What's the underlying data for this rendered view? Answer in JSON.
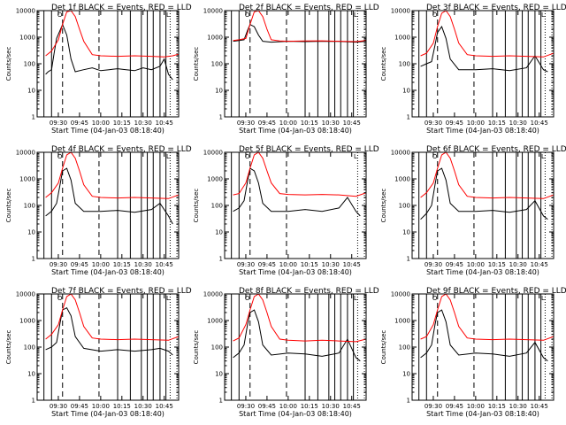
{
  "ylabel": "Counts/sec",
  "xlabel": "Start Time (04-Jan-03 08:18:40)",
  "y_ticks": [
    "1",
    "10",
    "100",
    "1000",
    "10000"
  ],
  "x_ticks": [
    "09:30",
    "09:45",
    "10:00",
    "10:15",
    "10:30",
    "10:45"
  ],
  "legend_marks": {
    "left": "O",
    "right": "L"
  },
  "colors": {
    "events": "#000000",
    "lld": "#ff0000",
    "axes": "#000000"
  },
  "chart_data": [
    {
      "type": "line",
      "title": "Det 1f BLACK = Events, RED = LLD",
      "xlim": [
        9.25,
        10.92
      ],
      "ylim": [
        1,
        10000
      ],
      "yscale": "log",
      "series": [
        {
          "name": "Events",
          "color": "#000000",
          "x": [
            9.35,
            9.38,
            9.42,
            9.45,
            9.48,
            9.52,
            9.55,
            9.6,
            9.65,
            9.7,
            9.8,
            9.9,
            10.0,
            10.1,
            10.2,
            10.3,
            10.4,
            10.5,
            10.6,
            10.7,
            10.75,
            10.8,
            10.85
          ],
          "y": [
            40,
            50,
            60,
            250,
            900,
            1800,
            3000,
            1200,
            150,
            50,
            60,
            70,
            55,
            60,
            65,
            60,
            55,
            70,
            60,
            80,
            150,
            40,
            25
          ]
        },
        {
          "name": "LLD",
          "color": "#ff0000",
          "x": [
            9.35,
            9.42,
            9.5,
            9.55,
            9.6,
            9.65,
            9.7,
            9.75,
            9.8,
            9.9,
            10.0,
            10.2,
            10.4,
            10.6,
            10.75,
            10.85,
            10.92
          ],
          "y": [
            200,
            300,
            800,
            3000,
            9000,
            10000,
            6000,
            2000,
            700,
            220,
            200,
            190,
            200,
            190,
            180,
            200,
            230
          ]
        }
      ],
      "markers": {
        "dashed": [
          9.55,
          9.98
        ],
        "solid": [
          9.33,
          9.42,
          10.2,
          10.35,
          10.48,
          10.55,
          10.62,
          10.7,
          10.77
        ],
        "dotted": [
          10.82,
          10.9
        ]
      }
    },
    {
      "type": "line",
      "title": "Det 2f BLACK = Events, RED = LLD",
      "xlim": [
        9.25,
        10.92
      ],
      "ylim": [
        1,
        10000
      ],
      "yscale": "log",
      "series": [
        {
          "name": "Events",
          "color": "#000000",
          "x": [
            9.35,
            9.42,
            9.48,
            9.52,
            9.55,
            9.6,
            9.65,
            9.7,
            9.8,
            10.0,
            10.2,
            10.4,
            10.6,
            10.8,
            10.92
          ],
          "y": [
            700,
            750,
            800,
            1800,
            3000,
            2500,
            1200,
            700,
            650,
            700,
            680,
            700,
            690,
            650,
            700
          ]
        },
        {
          "name": "LLD",
          "color": "#ff0000",
          "x": [
            9.35,
            9.42,
            9.5,
            9.55,
            9.6,
            9.65,
            9.7,
            9.75,
            9.8,
            9.9,
            10.0,
            10.2,
            10.4,
            10.6,
            10.8,
            10.92
          ],
          "y": [
            750,
            800,
            900,
            3000,
            9000,
            10000,
            6000,
            2000,
            800,
            720,
            700,
            720,
            730,
            700,
            680,
            750
          ]
        }
      ],
      "markers": {
        "dashed": [
          9.55,
          9.98
        ],
        "solid": [
          9.33,
          9.42,
          10.2,
          10.35,
          10.48,
          10.55,
          10.62,
          10.7,
          10.77
        ],
        "dotted": [
          10.82,
          10.9
        ]
      }
    },
    {
      "type": "line",
      "title": "Det 3f BLACK = Events, RED = LLD",
      "xlim": [
        9.25,
        10.92
      ],
      "ylim": [
        1,
        10000
      ],
      "yscale": "log",
      "series": [
        {
          "name": "Events",
          "color": "#000000",
          "x": [
            9.35,
            9.42,
            9.48,
            9.52,
            9.55,
            9.6,
            9.65,
            9.7,
            9.8,
            10.0,
            10.2,
            10.4,
            10.6,
            10.7,
            10.8,
            10.85
          ],
          "y": [
            80,
            100,
            120,
            500,
            1500,
            2500,
            900,
            150,
            60,
            60,
            65,
            55,
            70,
            200,
            60,
            50
          ]
        },
        {
          "name": "LLD",
          "color": "#ff0000",
          "x": [
            9.35,
            9.42,
            9.5,
            9.55,
            9.6,
            9.65,
            9.7,
            9.75,
            9.8,
            9.9,
            10.0,
            10.2,
            10.4,
            10.6,
            10.8,
            10.92
          ],
          "y": [
            200,
            250,
            600,
            2500,
            8000,
            10000,
            6000,
            2000,
            600,
            220,
            200,
            190,
            200,
            190,
            180,
            250
          ]
        }
      ],
      "markers": {
        "dashed": [
          9.55,
          9.98
        ],
        "solid": [
          9.33,
          9.42,
          10.2,
          10.35,
          10.48,
          10.55,
          10.62,
          10.7,
          10.77
        ],
        "dotted": [
          10.82,
          10.9
        ]
      }
    },
    {
      "type": "line",
      "title": "Det 4f BLACK = Events, RED = LLD",
      "xlim": [
        9.25,
        10.92
      ],
      "ylim": [
        1,
        10000
      ],
      "yscale": "log",
      "series": [
        {
          "name": "Events",
          "color": "#000000",
          "x": [
            9.35,
            9.42,
            9.48,
            9.52,
            9.55,
            9.6,
            9.65,
            9.7,
            9.8,
            10.0,
            10.2,
            10.4,
            10.6,
            10.7,
            10.8,
            10.85
          ],
          "y": [
            40,
            60,
            120,
            600,
            2000,
            2500,
            900,
            120,
            60,
            60,
            65,
            55,
            70,
            120,
            40,
            20
          ]
        },
        {
          "name": "LLD",
          "color": "#ff0000",
          "x": [
            9.35,
            9.42,
            9.5,
            9.55,
            9.6,
            9.65,
            9.7,
            9.75,
            9.8,
            9.9,
            10.0,
            10.2,
            10.4,
            10.6,
            10.8,
            10.92
          ],
          "y": [
            200,
            300,
            700,
            2500,
            8000,
            10000,
            6000,
            2000,
            600,
            220,
            200,
            190,
            200,
            190,
            180,
            250
          ]
        }
      ],
      "markers": {
        "dashed": [
          9.55,
          9.98
        ],
        "solid": [
          9.33,
          9.42,
          10.2,
          10.35,
          10.48,
          10.55,
          10.62,
          10.7,
          10.77
        ],
        "dotted": [
          10.82,
          10.9
        ]
      }
    },
    {
      "type": "line",
      "title": "Det 5f BLACK = Events, RED = LLD",
      "xlim": [
        9.25,
        10.92
      ],
      "ylim": [
        1,
        10000
      ],
      "yscale": "log",
      "series": [
        {
          "name": "Events",
          "color": "#000000",
          "x": [
            9.35,
            9.42,
            9.48,
            9.52,
            9.55,
            9.6,
            9.65,
            9.7,
            9.8,
            10.0,
            10.2,
            10.4,
            10.6,
            10.7,
            10.8,
            10.85
          ],
          "y": [
            60,
            80,
            150,
            800,
            2500,
            2000,
            700,
            120,
            60,
            60,
            70,
            60,
            80,
            200,
            60,
            40
          ]
        },
        {
          "name": "LLD",
          "color": "#ff0000",
          "x": [
            9.35,
            9.42,
            9.5,
            9.55,
            9.6,
            9.65,
            9.7,
            9.75,
            9.8,
            9.9,
            10.0,
            10.2,
            10.4,
            10.6,
            10.8,
            10.92
          ],
          "y": [
            250,
            280,
            700,
            2500,
            8000,
            10000,
            6000,
            2000,
            700,
            280,
            260,
            250,
            260,
            250,
            220,
            300
          ]
        }
      ],
      "markers": {
        "dashed": [
          9.55,
          9.98
        ],
        "solid": [
          9.33,
          9.42
        ],
        "dotted": [
          10.82,
          10.9
        ]
      }
    },
    {
      "type": "line",
      "title": "Det 6f BLACK = Events, RED = LLD",
      "xlim": [
        9.25,
        10.92
      ],
      "ylim": [
        1,
        10000
      ],
      "yscale": "log",
      "series": [
        {
          "name": "Events",
          "color": "#000000",
          "x": [
            9.35,
            9.42,
            9.48,
            9.52,
            9.55,
            9.6,
            9.65,
            9.7,
            9.8,
            10.0,
            10.2,
            10.4,
            10.6,
            10.7,
            10.8,
            10.85
          ],
          "y": [
            30,
            50,
            100,
            600,
            2000,
            2500,
            900,
            120,
            60,
            60,
            65,
            55,
            70,
            150,
            40,
            30
          ]
        },
        {
          "name": "LLD",
          "color": "#ff0000",
          "x": [
            9.35,
            9.42,
            9.5,
            9.55,
            9.6,
            9.65,
            9.7,
            9.75,
            9.8,
            9.9,
            10.0,
            10.2,
            10.4,
            10.6,
            10.8,
            10.92
          ],
          "y": [
            200,
            300,
            700,
            2500,
            8000,
            10000,
            6000,
            2000,
            600,
            220,
            200,
            190,
            200,
            190,
            180,
            250
          ]
        }
      ],
      "markers": {
        "dashed": [
          9.55,
          9.98
        ],
        "solid": [
          9.33,
          9.42,
          10.2,
          10.35,
          10.48,
          10.55,
          10.62,
          10.7,
          10.77
        ],
        "dotted": [
          10.82,
          10.9
        ]
      }
    },
    {
      "type": "line",
      "title": "Det 7f BLACK = Events, RED = LLD",
      "xlim": [
        9.25,
        10.92
      ],
      "ylim": [
        1,
        10000
      ],
      "yscale": "log",
      "series": [
        {
          "name": "Events",
          "color": "#000000",
          "x": [
            9.35,
            9.42,
            9.48,
            9.52,
            9.55,
            9.6,
            9.65,
            9.7,
            9.8,
            10.0,
            10.2,
            10.4,
            10.6,
            10.7,
            10.8,
            10.85
          ],
          "y": [
            80,
            100,
            150,
            800,
            2500,
            3000,
            1500,
            250,
            90,
            70,
            80,
            70,
            80,
            90,
            70,
            50
          ]
        },
        {
          "name": "LLD",
          "color": "#ff0000",
          "x": [
            9.35,
            9.42,
            9.5,
            9.55,
            9.6,
            9.65,
            9.7,
            9.75,
            9.8,
            9.9,
            10.0,
            10.2,
            10.4,
            10.6,
            10.8,
            10.92
          ],
          "y": [
            200,
            300,
            700,
            2500,
            8000,
            10000,
            6000,
            2000,
            600,
            220,
            200,
            190,
            200,
            190,
            180,
            250
          ]
        }
      ],
      "markers": {
        "dashed": [
          9.55,
          9.98
        ],
        "solid": [
          9.33,
          9.42,
          10.2,
          10.35,
          10.48,
          10.55,
          10.62,
          10.7,
          10.77
        ],
        "dotted": [
          10.82,
          10.9
        ]
      }
    },
    {
      "type": "line",
      "title": "Det 8f BLACK = Events, RED = LLD",
      "xlim": [
        9.25,
        10.92
      ],
      "ylim": [
        1,
        10000
      ],
      "yscale": "log",
      "series": [
        {
          "name": "Events",
          "color": "#000000",
          "x": [
            9.35,
            9.42,
            9.48,
            9.52,
            9.55,
            9.6,
            9.65,
            9.7,
            9.8,
            10.0,
            10.2,
            10.4,
            10.6,
            10.7,
            10.8,
            10.85
          ],
          "y": [
            40,
            60,
            120,
            700,
            2000,
            2500,
            900,
            120,
            50,
            60,
            55,
            45,
            60,
            200,
            40,
            30
          ]
        },
        {
          "name": "LLD",
          "color": "#ff0000",
          "x": [
            9.35,
            9.42,
            9.5,
            9.55,
            9.6,
            9.65,
            9.7,
            9.75,
            9.8,
            9.9,
            10.0,
            10.2,
            10.4,
            10.6,
            10.8,
            10.92
          ],
          "y": [
            170,
            220,
            700,
            2500,
            8000,
            10000,
            6000,
            2000,
            600,
            200,
            180,
            170,
            180,
            170,
            160,
            200
          ]
        }
      ],
      "markers": {
        "dashed": [
          9.55,
          9.98
        ],
        "solid": [
          9.33,
          9.42,
          10.2,
          10.35,
          10.48,
          10.55,
          10.62,
          10.7,
          10.77
        ],
        "dotted": [
          10.82,
          10.9
        ]
      }
    },
    {
      "type": "line",
      "title": "Det 9f BLACK = Events, RED = LLD",
      "xlim": [
        9.25,
        10.92
      ],
      "ylim": [
        1,
        10000
      ],
      "yscale": "log",
      "series": [
        {
          "name": "Events",
          "color": "#000000",
          "x": [
            9.35,
            9.42,
            9.48,
            9.52,
            9.55,
            9.6,
            9.65,
            9.7,
            9.8,
            10.0,
            10.2,
            10.4,
            10.6,
            10.7,
            10.8,
            10.85
          ],
          "y": [
            40,
            60,
            120,
            700,
            2000,
            2500,
            900,
            120,
            50,
            60,
            55,
            45,
            60,
            150,
            40,
            30
          ]
        },
        {
          "name": "LLD",
          "color": "#ff0000",
          "x": [
            9.35,
            9.42,
            9.5,
            9.55,
            9.6,
            9.65,
            9.7,
            9.75,
            9.8,
            9.9,
            10.0,
            10.2,
            10.4,
            10.6,
            10.8,
            10.92
          ],
          "y": [
            200,
            250,
            700,
            2500,
            8000,
            10000,
            6000,
            2000,
            600,
            220,
            200,
            190,
            200,
            190,
            180,
            250
          ]
        }
      ],
      "markers": {
        "dashed": [
          9.55,
          9.98
        ],
        "solid": [
          9.33,
          9.42,
          10.2,
          10.35,
          10.48,
          10.55,
          10.62,
          10.7,
          10.77
        ],
        "dotted": [
          10.82,
          10.9
        ]
      }
    }
  ]
}
